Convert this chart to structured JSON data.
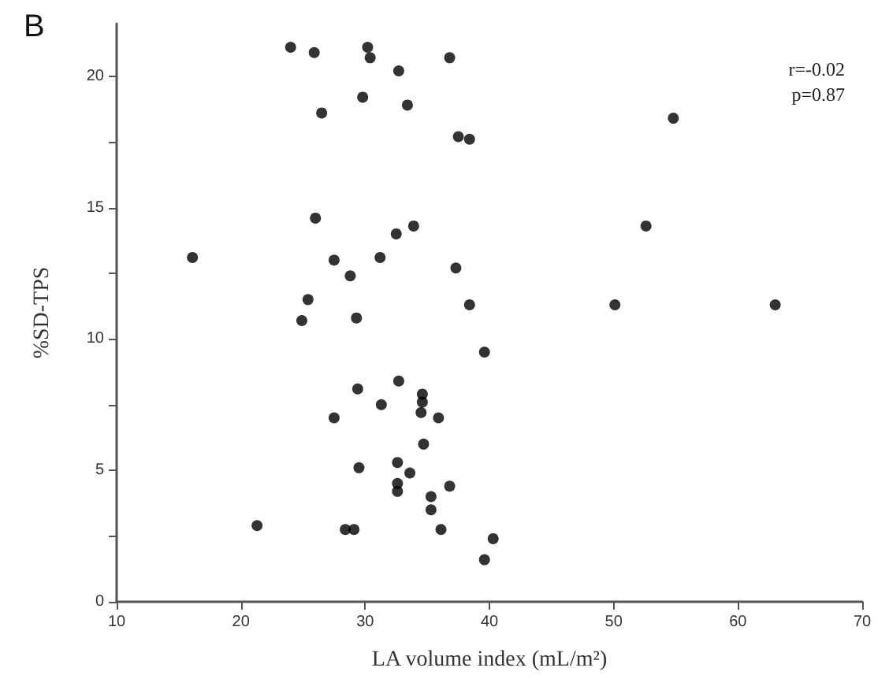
{
  "chart_data": {
    "type": "scatter",
    "title": "B",
    "xlabel": "LA volume index (mL/m²)",
    "ylabel": "%SD-TPS",
    "annotations": [
      "r=-0.02",
      "p=0.87"
    ],
    "xlim": [
      10,
      70
    ],
    "xticks": [
      10,
      20,
      30,
      40,
      50,
      60,
      70
    ],
    "ylim": [
      0,
      22
    ],
    "yticks": [
      0,
      {
        "value": 2.5,
        "label": null
      },
      5,
      {
        "value": 7.5,
        "label": null
      },
      10,
      {
        "value": 12.5,
        "label": null
      },
      15,
      {
        "value": 17.5,
        "label": null
      },
      20
    ],
    "grid": false,
    "marker": "circle",
    "series": [
      {
        "color": "#000000",
        "x": [
          24.0,
          25.9,
          30.2,
          30.4,
          32.7,
          36.8,
          29.8,
          33.4,
          26.5,
          37.5,
          38.4,
          54.8,
          26.0,
          32.5,
          33.9,
          52.6,
          16.1,
          27.5,
          31.2,
          37.3,
          28.8,
          25.4,
          24.9,
          29.3,
          38.4,
          50.1,
          63.0,
          39.6,
          29.4,
          32.7,
          34.6,
          34.6,
          31.3,
          27.5,
          34.5,
          35.9,
          34.7,
          32.6,
          29.5,
          33.6,
          32.6,
          32.6,
          36.8,
          35.3,
          35.3,
          21.3,
          28.4,
          29.1,
          36.1,
          39.6,
          40.3
        ],
        "values": [
          21.1,
          20.9,
          21.1,
          20.7,
          20.2,
          20.7,
          19.2,
          18.9,
          18.6,
          17.7,
          17.6,
          18.4,
          14.6,
          14.0,
          14.3,
          14.3,
          13.1,
          13.0,
          13.1,
          12.7,
          12.4,
          11.5,
          10.7,
          10.8,
          11.3,
          11.3,
          11.3,
          9.5,
          8.1,
          8.4,
          7.9,
          7.6,
          7.5,
          7.0,
          7.2,
          7.0,
          6.0,
          5.3,
          5.1,
          4.9,
          4.5,
          4.2,
          4.4,
          4.0,
          3.5,
          2.9,
          2.75,
          2.75,
          2.75,
          1.6,
          2.4
        ]
      }
    ]
  }
}
